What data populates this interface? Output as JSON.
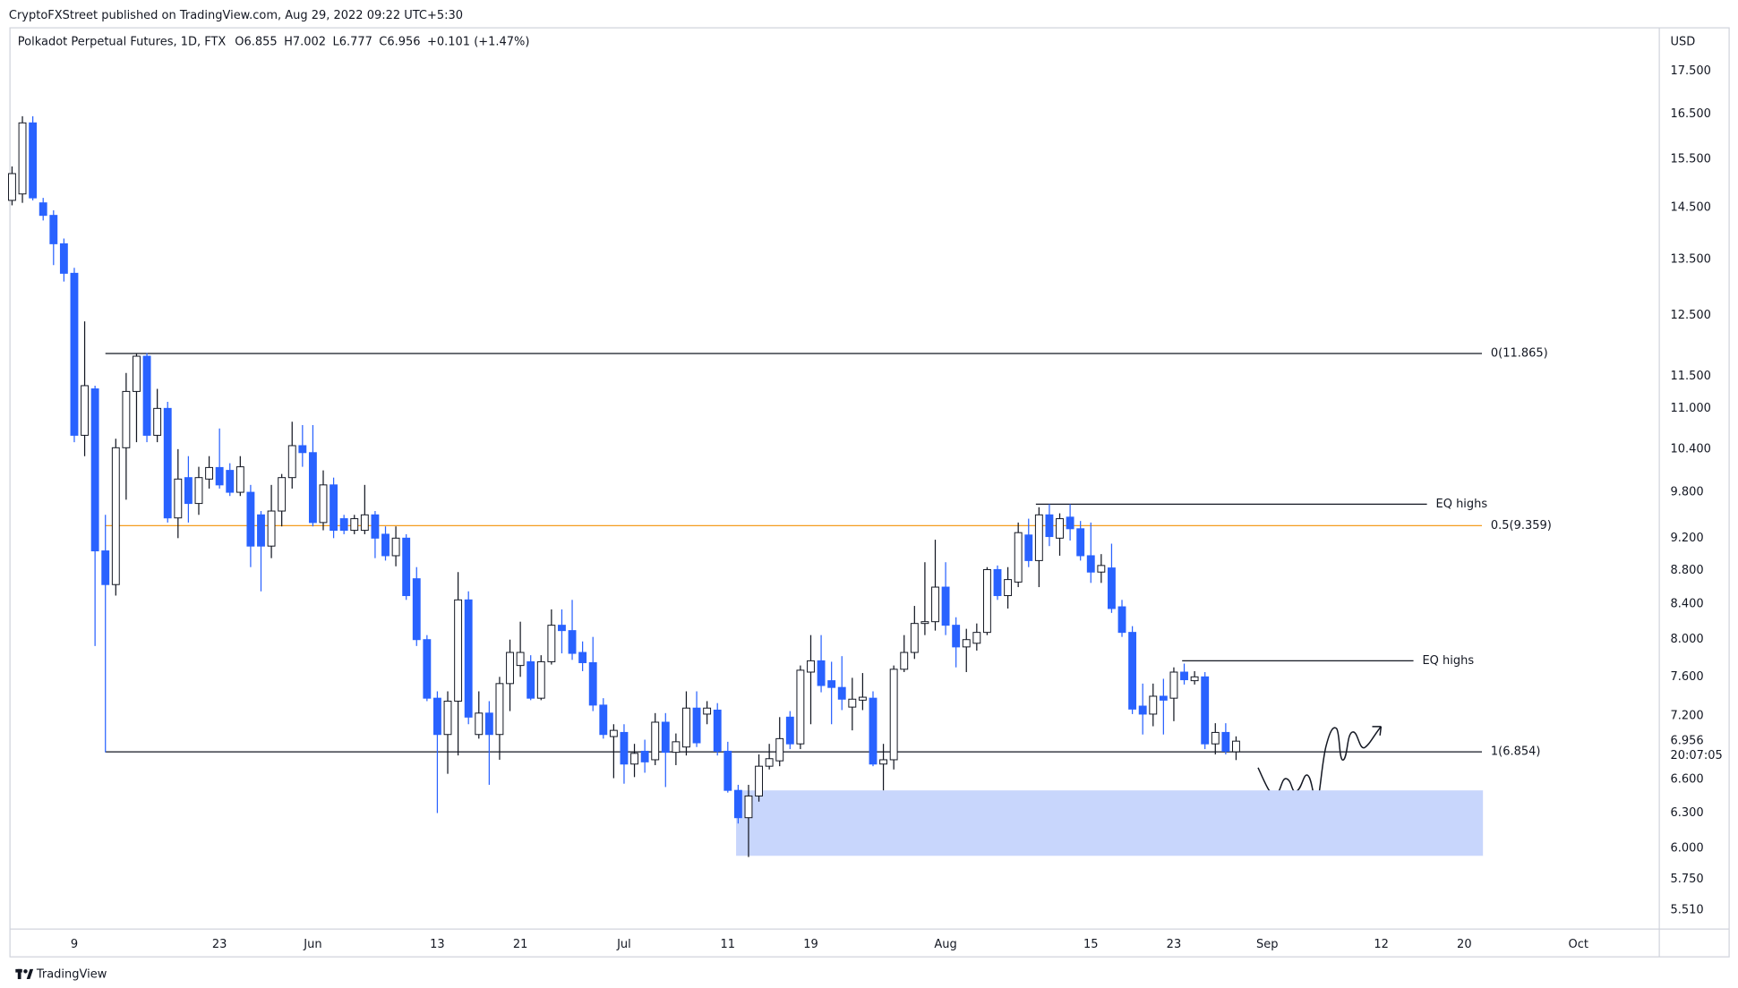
{
  "header": "CryptoFXStreet published on TradingView.com, Aug 29, 2022 09:22 UTC+5:30",
  "footer": "TradingView",
  "chart_data": {
    "type": "candlestick",
    "symbol": "Polkadot Perpetual Futures, 1D, FTX",
    "ohlc_legend": [
      "O6.855",
      "H7.002",
      "L6.777",
      "C6.956",
      "+0.101 (+1.47%)"
    ],
    "y_axis_label": "USD",
    "log_scale": true,
    "grid": false,
    "up_color": "#ffffff",
    "down_color": "#2962ff",
    "outline_color": "#131722",
    "open": [
      14.65,
      14.78,
      16.3,
      14.6,
      14.35,
      13.8,
      13.25,
      10.6,
      11.3,
      9.04,
      8.63,
      10.42,
      11.26,
      11.82,
      10.6,
      11.0,
      9.46,
      10.0,
      9.65,
      9.98,
      10.14,
      10.1,
      9.8,
      9.8,
      9.5,
      9.1,
      9.55,
      10.0,
      10.45,
      10.35,
      9.4,
      9.9,
      9.45,
      9.3,
      9.3,
      9.5,
      9.25,
      8.98,
      9.2,
      8.7,
      8.0,
      7.38,
      7.02,
      7.35,
      8.45,
      7.02,
      7.23,
      7.02,
      7.53,
      7.72,
      7.76,
      7.38,
      7.76,
      8.16,
      8.1,
      7.86,
      7.75,
      7.31,
      7.0,
      7.04,
      6.74,
      6.86,
      6.78,
      7.14,
      6.85,
      6.9,
      7.28,
      7.22,
      7.26,
      6.86,
      6.5,
      6.26,
      6.45,
      6.72,
      6.77,
      7.19,
      6.93,
      7.65,
      7.77,
      7.56,
      7.49,
      7.29,
      7.36,
      7.38,
      6.74,
      6.78,
      7.68,
      7.86,
      8.18,
      8.2,
      8.6,
      8.16,
      7.92,
      7.96,
      8.08,
      8.81,
      8.5,
      8.66,
      9.24,
      8.92,
      9.5,
      9.2,
      9.47,
      9.32,
      8.98,
      8.78,
      8.83,
      8.37,
      8.08,
      7.3,
      7.22,
      7.4,
      7.38,
      7.65,
      7.56,
      7.6,
      6.93,
      7.04,
      6.855
    ],
    "high": [
      15.35,
      16.45,
      16.45,
      14.7,
      14.45,
      13.9,
      13.35,
      12.4,
      11.35,
      9.5,
      10.55,
      11.55,
      11.87,
      11.87,
      11.3,
      11.1,
      10.4,
      10.3,
      10.15,
      10.3,
      10.7,
      10.2,
      10.3,
      9.9,
      9.55,
      9.9,
      10.05,
      10.8,
      10.75,
      10.75,
      10.1,
      10.0,
      9.5,
      9.5,
      9.9,
      9.55,
      9.35,
      9.35,
      9.25,
      8.84,
      8.05,
      7.45,
      7.45,
      8.78,
      8.55,
      7.45,
      7.35,
      7.6,
      8.0,
      8.2,
      7.83,
      7.83,
      8.34,
      8.34,
      8.45,
      7.98,
      8.03,
      7.38,
      7.12,
      7.12,
      6.93,
      6.97,
      7.23,
      7.23,
      7.03,
      7.45,
      7.45,
      7.35,
      7.33,
      6.95,
      6.55,
      6.55,
      6.83,
      6.93,
      7.19,
      7.25,
      7.72,
      8.05,
      8.05,
      7.76,
      7.82,
      7.59,
      7.64,
      7.45,
      6.93,
      7.72,
      8.05,
      8.38,
      8.9,
      9.18,
      8.9,
      8.25,
      8.12,
      8.18,
      8.84,
      8.86,
      8.84,
      9.4,
      9.45,
      9.6,
      9.64,
      9.52,
      9.64,
      9.42,
      9.4,
      9.0,
      9.13,
      8.45,
      8.15,
      7.53,
      7.53,
      7.58,
      7.7,
      7.74,
      7.66,
      7.65,
      7.13,
      7.13,
      7.002
    ],
    "low": [
      14.55,
      14.6,
      14.65,
      14.25,
      13.4,
      13.1,
      10.5,
      10.3,
      7.93,
      6.85,
      8.5,
      9.7,
      10.5,
      10.5,
      10.5,
      9.4,
      9.2,
      9.4,
      9.5,
      9.85,
      9.85,
      9.75,
      9.75,
      8.84,
      8.55,
      8.95,
      9.35,
      9.85,
      10.15,
      9.35,
      9.3,
      9.2,
      9.25,
      9.25,
      9.25,
      8.95,
      8.92,
      8.85,
      8.45,
      7.93,
      7.35,
      6.3,
      6.65,
      6.82,
      7.12,
      6.98,
      6.55,
      6.78,
      7.25,
      7.6,
      7.36,
      7.36,
      7.73,
      7.85,
      7.78,
      7.66,
      7.25,
      6.98,
      6.61,
      6.56,
      6.62,
      6.66,
      6.73,
      6.53,
      6.73,
      6.82,
      6.9,
      7.12,
      6.82,
      6.48,
      6.21,
      5.93,
      6.4,
      6.69,
      6.72,
      6.88,
      6.88,
      7.12,
      7.44,
      7.12,
      7.26,
      7.06,
      7.26,
      6.72,
      6.5,
      6.69,
      7.65,
      7.79,
      8.05,
      8.1,
      8.05,
      7.7,
      7.65,
      7.88,
      8.05,
      8.45,
      8.35,
      8.6,
      8.84,
      8.6,
      9.1,
      8.98,
      9.17,
      8.92,
      8.65,
      8.65,
      8.3,
      8.03,
      7.22,
      7.02,
      7.1,
      7.02,
      7.15,
      7.52,
      7.52,
      6.88,
      6.83,
      6.83,
      6.777
    ],
    "close": [
      15.2,
      16.3,
      14.7,
      14.35,
      13.8,
      13.25,
      10.6,
      11.35,
      9.04,
      8.63,
      10.42,
      11.26,
      11.82,
      10.6,
      11.0,
      9.46,
      9.98,
      9.65,
      10.0,
      10.14,
      9.9,
      9.8,
      10.15,
      9.1,
      9.1,
      9.55,
      10.0,
      10.45,
      10.35,
      9.4,
      9.9,
      9.3,
      9.3,
      9.45,
      9.5,
      9.2,
      8.98,
      9.2,
      8.5,
      8.0,
      7.38,
      7.02,
      7.35,
      8.45,
      7.19,
      7.23,
      7.02,
      7.53,
      7.86,
      7.86,
      7.38,
      7.76,
      8.16,
      8.1,
      7.85,
      7.75,
      7.31,
      7.02,
      7.06,
      6.74,
      6.84,
      6.76,
      7.14,
      6.85,
      6.95,
      7.28,
      6.94,
      7.28,
      6.86,
      6.5,
      6.26,
      6.45,
      6.72,
      6.79,
      6.98,
      6.93,
      7.67,
      7.77,
      7.51,
      7.49,
      7.37,
      7.37,
      7.39,
      6.74,
      6.78,
      7.68,
      7.86,
      8.18,
      8.2,
      8.6,
      8.16,
      7.92,
      8.0,
      8.08,
      8.81,
      8.5,
      8.69,
      9.27,
      8.92,
      9.5,
      9.22,
      9.45,
      9.32,
      8.98,
      8.78,
      8.86,
      8.35,
      8.08,
      7.27,
      7.22,
      7.4,
      7.36,
      7.65,
      7.57,
      7.6,
      6.93,
      7.04,
      6.86,
      6.956
    ],
    "xlim": [
      -0.2,
      158.8
    ],
    "xticks": [
      {
        "value": 6,
        "label": "9"
      },
      {
        "value": 20,
        "label": "23"
      },
      {
        "value": 29,
        "label": "Jun"
      },
      {
        "value": 41,
        "label": "13"
      },
      {
        "value": 49,
        "label": "21"
      },
      {
        "value": 59,
        "label": "Jul"
      },
      {
        "value": 69,
        "label": "11"
      },
      {
        "value": 77,
        "label": "19"
      },
      {
        "value": 90,
        "label": "Aug"
      },
      {
        "value": 104,
        "label": "15"
      },
      {
        "value": 112,
        "label": "23"
      },
      {
        "value": 121,
        "label": "Sep"
      },
      {
        "value": 132,
        "label": "12"
      },
      {
        "value": 140,
        "label": "20"
      },
      {
        "value": 151,
        "label": "Oct"
      }
    ],
    "ylim": [
      5.37,
      18.58
    ],
    "yticks": [
      {
        "value": 5.51,
        "label": "5.510"
      },
      {
        "value": 5.75,
        "label": "5.750"
      },
      {
        "value": 6.0,
        "label": "6.000"
      },
      {
        "value": 6.3,
        "label": "6.300"
      },
      {
        "value": 6.6,
        "label": "6.600"
      },
      {
        "value": 7.2,
        "label": "7.200"
      },
      {
        "value": 7.6,
        "label": "7.600"
      },
      {
        "value": 8.0,
        "label": "8.000"
      },
      {
        "value": 8.4,
        "label": "8.400"
      },
      {
        "value": 8.8,
        "label": "8.800"
      },
      {
        "value": 9.2,
        "label": "9.200"
      },
      {
        "value": 9.8,
        "label": "9.800"
      },
      {
        "value": 10.4,
        "label": "10.400"
      },
      {
        "value": 11.0,
        "label": "11.000"
      },
      {
        "value": 11.5,
        "label": "11.500"
      },
      {
        "value": 12.5,
        "label": "12.500"
      },
      {
        "value": 13.5,
        "label": "13.500"
      },
      {
        "value": 14.5,
        "label": "14.500"
      },
      {
        "value": 15.5,
        "label": "15.500"
      },
      {
        "value": 16.5,
        "label": "16.500"
      },
      {
        "value": 17.5,
        "label": "17.500"
      }
    ],
    "last_price": 6.956,
    "countdown": "20:07:05",
    "levels": [
      {
        "label": "0(11.865)",
        "value": 11.865,
        "color": "#131722",
        "x_range": [
          9,
          141.7
        ]
      },
      {
        "label": "0.5(9.359)",
        "value": 9.359,
        "color": "#f59d1f",
        "x_range": [
          9,
          141.7
        ]
      },
      {
        "label": "1(6.854)",
        "value": 6.854,
        "color": "#131722",
        "x_range": [
          9,
          141.7
        ]
      },
      {
        "label": "EQ highs",
        "value": 9.64,
        "color": "#131722",
        "x_range": [
          98.7,
          136.4
        ]
      },
      {
        "label": "EQ highs",
        "value": 7.77,
        "color": "#131722",
        "x_range": [
          112.8,
          135.1
        ]
      }
    ],
    "zone": {
      "top": 6.5,
      "bottom": 5.94,
      "x_range": [
        69.8,
        141.8
      ],
      "color": "#c8d6fc"
    }
  }
}
